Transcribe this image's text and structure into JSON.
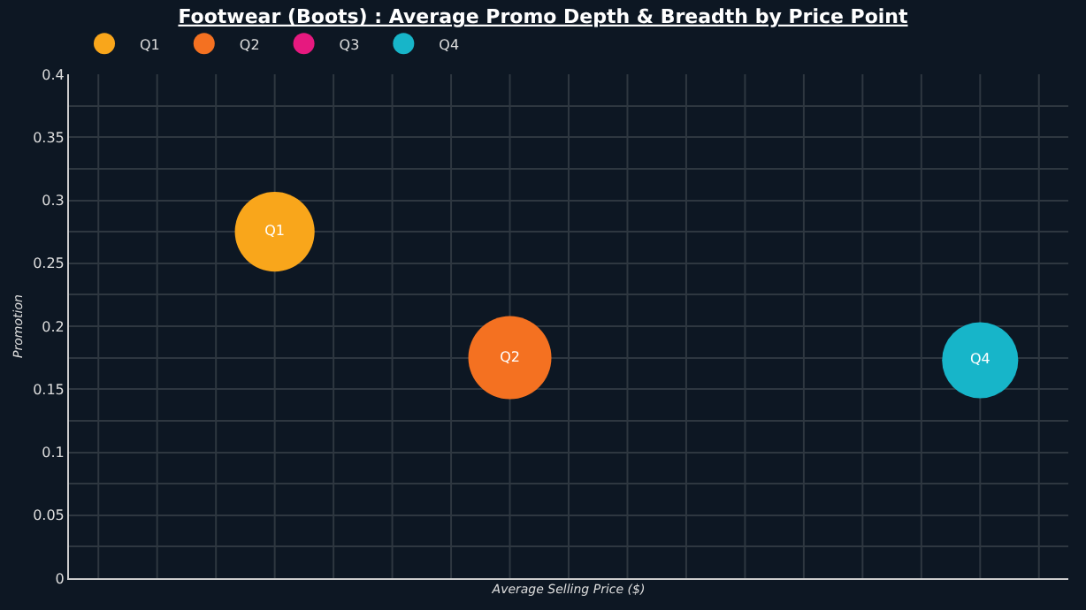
{
  "chart_data": {
    "type": "bubble",
    "title": "Footwear (Boots) : Average Promo Depth & Breadth by Price Point",
    "xlabel": "Average Selling Price ($)",
    "ylabel": "Promotion",
    "categories": [
      null,
      null,
      null,
      null,
      null,
      null,
      null,
      null,
      null,
      null,
      null,
      null,
      null,
      null,
      null,
      null,
      null
    ],
    "series": [
      {
        "name": "Q1",
        "color": "#f9a61b",
        "values": [
          null,
          null,
          null,
          0.275,
          null,
          null,
          null,
          null,
          null,
          null,
          null,
          null,
          null,
          null,
          null,
          null,
          null
        ],
        "sizes": [
          null,
          null,
          null,
          0.92,
          null,
          null,
          null,
          null,
          null,
          null,
          null,
          null,
          null,
          null,
          null,
          null,
          null
        ]
      },
      {
        "name": "Q2",
        "color": "#f47121",
        "values": [
          null,
          null,
          null,
          null,
          null,
          null,
          null,
          0.175,
          null,
          null,
          null,
          null,
          null,
          null,
          null,
          null,
          null
        ],
        "sizes": [
          null,
          null,
          null,
          null,
          null,
          null,
          null,
          1,
          null,
          null,
          null,
          null,
          null,
          null,
          null,
          null,
          null
        ]
      },
      {
        "name": "Q3",
        "color": "#e6197f",
        "values": [
          null,
          null,
          null,
          null,
          null,
          null,
          null,
          null,
          null,
          null,
          null,
          null,
          null,
          null,
          null,
          null,
          null
        ],
        "sizes": [
          null,
          null,
          null,
          null,
          null,
          null,
          null,
          null,
          null,
          null,
          null,
          null,
          null,
          null,
          null,
          null,
          null
        ]
      },
      {
        "name": "Q4",
        "color": "#17b5c9",
        "values": [
          null,
          null,
          null,
          null,
          null,
          null,
          null,
          null,
          null,
          null,
          null,
          null,
          null,
          null,
          null,
          0.173,
          null
        ],
        "sizes": [
          null,
          null,
          null,
          null,
          null,
          null,
          null,
          null,
          null,
          null,
          null,
          null,
          null,
          null,
          null,
          0.84,
          null
        ]
      }
    ],
    "ylim": [
      0,
      0.4
    ],
    "yticks": [
      0,
      0.05,
      0.1,
      0.15,
      0.2,
      0.25,
      0.3,
      0.35,
      0.4
    ],
    "tick_labels": "y",
    "grid": true,
    "legend": "top left",
    "marker": "circle"
  }
}
